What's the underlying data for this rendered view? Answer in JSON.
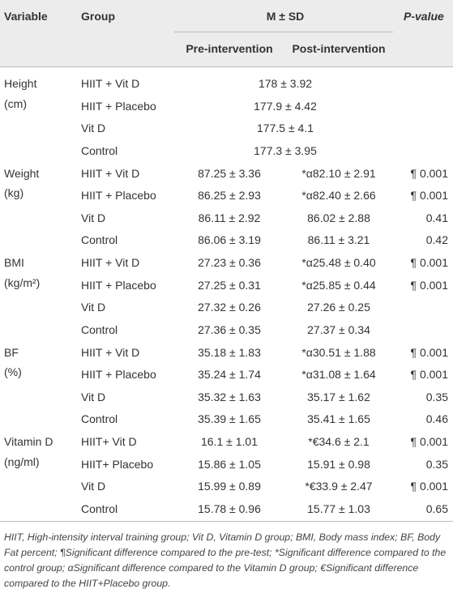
{
  "table": {
    "header": {
      "variable": "Variable",
      "group": "Group",
      "msd": "M ± SD",
      "pre": "Pre-intervention",
      "post": "Post-intervention",
      "pvalue": "P-value"
    },
    "sections": [
      {
        "variable": "Height",
        "unit": "(cm)",
        "rows": [
          {
            "group": "HIIT + Vit D",
            "merged": "178 ± 3.92"
          },
          {
            "group": "HIIT + Placebo",
            "merged": "177.9 ± 4.42"
          },
          {
            "group": "Vit D",
            "merged": "177.5 ± 4.1"
          },
          {
            "group": "Control",
            "merged": "177.3 ± 3.95"
          }
        ]
      },
      {
        "variable": "Weight",
        "unit": "(kg)",
        "rows": [
          {
            "group": "HIIT + Vit D",
            "pre": "87.25 ± 3.36",
            "post": "*α82.10 ± 2.91",
            "p": "¶ 0.001"
          },
          {
            "group": "HIIT + Placebo",
            "pre": "86.25 ± 2.93",
            "post": "*α82.40 ± 2.66",
            "p": "¶ 0.001"
          },
          {
            "group": "Vit D",
            "pre": "86.11 ± 2.92",
            "post": "86.02 ± 2.88",
            "p": "0.41"
          },
          {
            "group": "Control",
            "pre": "86.06 ± 3.19",
            "post": "86.11 ± 3.21",
            "p": "0.42"
          }
        ]
      },
      {
        "variable": "BMI",
        "unit": "(kg/m²)",
        "rows": [
          {
            "group": "HIIT + Vit D",
            "pre": "27.23 ± 0.36",
            "post": "*α25.48 ± 0.40",
            "p": "¶ 0.001"
          },
          {
            "group": "HIIT + Placebo",
            "pre": "27.25 ± 0.31",
            "post": "*α25.85 ± 0.44",
            "p": "¶ 0.001"
          },
          {
            "group": "Vit D",
            "pre": "27.32 ± 0.26",
            "post": "27.26 ± 0.25"
          },
          {
            "group": "Control",
            "pre": "27.36 ± 0.35",
            "post": "27.37 ± 0.34"
          }
        ]
      },
      {
        "variable": "BF",
        "unit": "(%)",
        "rows": [
          {
            "group": "HIIT + Vit D",
            "pre": "35.18 ± 1.83",
            "post": "*α30.51 ± 1.88",
            "p": "¶ 0.001"
          },
          {
            "group": "HIIT + Placebo",
            "pre": "35.24 ± 1.74",
            "post": "*α31.08 ± 1.64",
            "p": "¶ 0.001"
          },
          {
            "group": "Vit D",
            "pre": "35.32 ± 1.63",
            "post": "35.17 ± 1.62",
            "p": "0.35"
          },
          {
            "group": "Control",
            "pre": "35.39 ± 1.65",
            "post": "35.41 ± 1.65",
            "p": "0.46"
          }
        ]
      },
      {
        "variable": "Vitamin D",
        "unit": "(ng/ml)",
        "rows": [
          {
            "group": "HIIT+ Vit D",
            "pre": "16.1 ± 1.01",
            "post": "*€34.6 ± 2.1",
            "p": "¶ 0.001"
          },
          {
            "group": "HIIT+ Placebo",
            "pre": "15.86 ± 1.05",
            "post": "15.91 ± 0.98",
            "p": "0.35"
          },
          {
            "group": "Vit D",
            "pre": "15.99 ± 0.89",
            "post": "*€33.9 ± 2.47",
            "p": "¶ 0.001"
          },
          {
            "group": "Control",
            "pre": "15.78 ± 0.96",
            "post": "15.77 ± 1.03",
            "p": "0.65"
          }
        ]
      }
    ]
  },
  "footnote": "HIIT, High-intensity interval training group; Vit D, Vitamin D group; BMI, Body mass index; BF, Body Fat percent; ¶Significant difference compared to the pre-test; *Significant difference compared to the control group; αSignificant difference compared to the Vitamin D group; €Significant difference compared to the HIIT+Placebo group."
}
